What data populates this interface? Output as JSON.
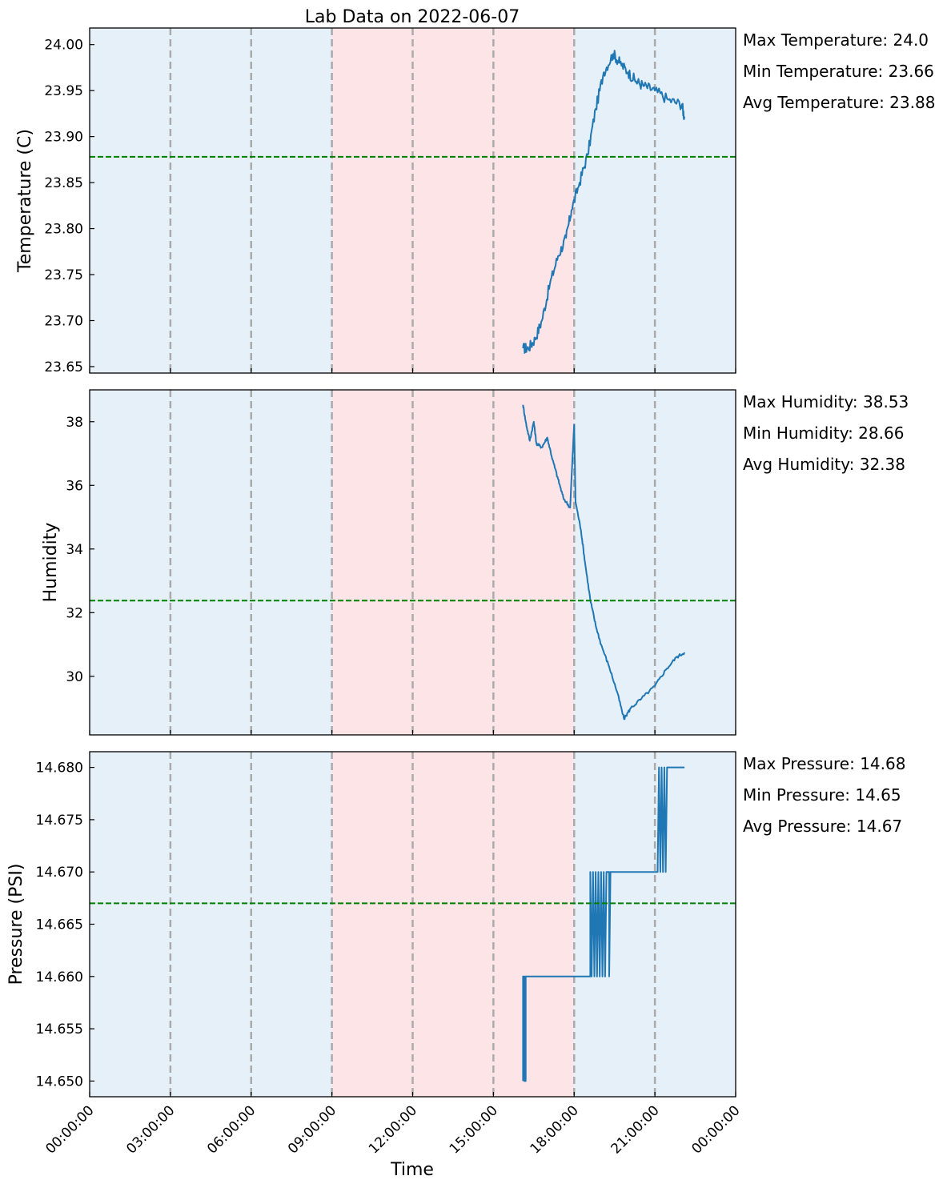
{
  "chart_data": {
    "type": "line",
    "title": "Lab Data on 2022-06-07",
    "xlabel": "Time",
    "x_range_hours": [
      0,
      24
    ],
    "x_tick_labels": [
      "00:00:00",
      "03:00:00",
      "06:00:00",
      "09:00:00",
      "12:00:00",
      "15:00:00",
      "18:00:00",
      "21:00:00",
      "00:00:00"
    ],
    "shaded_bands": [
      {
        "from_hour": 0,
        "to_hour": 9,
        "color": "#e6f0f9"
      },
      {
        "from_hour": 9,
        "to_hour": 18,
        "color": "#fde4e7"
      },
      {
        "from_hour": 18,
        "to_hour": 24,
        "color": "#e6f0f9"
      }
    ],
    "vertical_gridlines_hours": [
      3,
      6,
      9,
      12,
      15,
      18,
      21
    ],
    "colors": {
      "series": "#1f77b4",
      "average_line": "#008000",
      "gridline": "#aaaaaa"
    },
    "panels": [
      {
        "ylabel": "Temperature (C)",
        "ylim": [
          23.643,
          24.018
        ],
        "yticks": [
          23.65,
          23.7,
          23.75,
          23.8,
          23.85,
          23.9,
          23.95,
          24.0
        ],
        "ytick_labels": [
          "23.65",
          "23.70",
          "23.75",
          "23.80",
          "23.85",
          "23.90",
          "23.95",
          "24.00"
        ],
        "average": 23.878,
        "stats": [
          "Max Temperature: 24.0",
          "Min Temperature: 23.66",
          "Avg Temperature: 23.88"
        ],
        "noise": 0.012,
        "series": [
          {
            "x": 16.1,
            "y": 23.67
          },
          {
            "x": 16.3,
            "y": 23.67
          },
          {
            "x": 16.55,
            "y": 23.68
          },
          {
            "x": 16.8,
            "y": 23.7
          },
          {
            "x": 17.1,
            "y": 23.74
          },
          {
            "x": 17.4,
            "y": 23.77
          },
          {
            "x": 17.7,
            "y": 23.79
          },
          {
            "x": 17.9,
            "y": 23.82
          },
          {
            "x": 18.2,
            "y": 23.85
          },
          {
            "x": 18.5,
            "y": 23.88
          },
          {
            "x": 18.8,
            "y": 23.93
          },
          {
            "x": 19.1,
            "y": 23.97
          },
          {
            "x": 19.45,
            "y": 23.99
          },
          {
            "x": 19.7,
            "y": 23.98
          },
          {
            "x": 20.0,
            "y": 23.97
          },
          {
            "x": 20.3,
            "y": 23.96
          },
          {
            "x": 20.6,
            "y": 23.955
          },
          {
            "x": 21.0,
            "y": 23.95
          },
          {
            "x": 21.5,
            "y": 23.94
          },
          {
            "x": 22.0,
            "y": 23.935
          },
          {
            "x": 22.1,
            "y": 23.92
          }
        ]
      },
      {
        "ylabel": "Humidity",
        "ylim": [
          28.16,
          39.0
        ],
        "yticks": [
          30,
          32,
          34,
          36,
          38
        ],
        "ytick_labels": [
          "30",
          "32",
          "34",
          "36",
          "38"
        ],
        "average": 32.38,
        "stats": [
          "Max Humidity: 38.53",
          "Min Humidity: 28.66",
          "Avg Humidity: 32.38"
        ],
        "noise": 0.1,
        "series": [
          {
            "x": 16.1,
            "y": 38.53
          },
          {
            "x": 16.2,
            "y": 38.0
          },
          {
            "x": 16.35,
            "y": 37.4
          },
          {
            "x": 16.5,
            "y": 38.0
          },
          {
            "x": 16.6,
            "y": 37.3
          },
          {
            "x": 16.8,
            "y": 37.2
          },
          {
            "x": 17.0,
            "y": 37.5
          },
          {
            "x": 17.2,
            "y": 36.8
          },
          {
            "x": 17.4,
            "y": 36.2
          },
          {
            "x": 17.6,
            "y": 35.6
          },
          {
            "x": 17.85,
            "y": 35.3
          },
          {
            "x": 18.0,
            "y": 37.9
          },
          {
            "x": 18.05,
            "y": 35.5
          },
          {
            "x": 18.25,
            "y": 34.6
          },
          {
            "x": 18.4,
            "y": 33.6
          },
          {
            "x": 18.6,
            "y": 32.4
          },
          {
            "x": 18.8,
            "y": 31.6
          },
          {
            "x": 19.0,
            "y": 31.0
          },
          {
            "x": 19.3,
            "y": 30.3
          },
          {
            "x": 19.6,
            "y": 29.5
          },
          {
            "x": 19.85,
            "y": 28.66
          },
          {
            "x": 20.1,
            "y": 29.0
          },
          {
            "x": 20.5,
            "y": 29.3
          },
          {
            "x": 21.0,
            "y": 29.7
          },
          {
            "x": 21.4,
            "y": 30.2
          },
          {
            "x": 21.8,
            "y": 30.6
          },
          {
            "x": 22.1,
            "y": 30.75
          }
        ]
      },
      {
        "ylabel": "Pressure (PSI)",
        "ylim": [
          14.6485,
          14.6815
        ],
        "yticks": [
          14.65,
          14.655,
          14.66,
          14.665,
          14.67,
          14.675,
          14.68
        ],
        "ytick_labels": [
          "14.650",
          "14.655",
          "14.660",
          "14.665",
          "14.670",
          "14.675",
          "14.680"
        ],
        "average": 14.667,
        "stats": [
          "Max Pressure: 14.68",
          "Min Pressure: 14.65",
          "Avg Pressure: 14.67"
        ],
        "noise": 0,
        "series": [
          {
            "x": 16.1,
            "y": 14.65
          },
          {
            "x": 16.1,
            "y": 14.66
          },
          {
            "x": 16.15,
            "y": 14.66
          },
          {
            "x": 16.15,
            "y": 14.65
          },
          {
            "x": 16.2,
            "y": 14.65
          },
          {
            "x": 16.2,
            "y": 14.66
          },
          {
            "x": 18.6,
            "y": 14.66
          },
          {
            "x": 18.6,
            "y": 14.67
          },
          {
            "x": 18.65,
            "y": 14.66
          },
          {
            "x": 18.7,
            "y": 14.67
          },
          {
            "x": 18.75,
            "y": 14.66
          },
          {
            "x": 18.8,
            "y": 14.67
          },
          {
            "x": 18.85,
            "y": 14.66
          },
          {
            "x": 18.9,
            "y": 14.67
          },
          {
            "x": 18.95,
            "y": 14.66
          },
          {
            "x": 19.0,
            "y": 14.67
          },
          {
            "x": 19.05,
            "y": 14.66
          },
          {
            "x": 19.1,
            "y": 14.67
          },
          {
            "x": 19.15,
            "y": 14.66
          },
          {
            "x": 19.2,
            "y": 14.67
          },
          {
            "x": 19.3,
            "y": 14.67
          },
          {
            "x": 19.3,
            "y": 14.66
          },
          {
            "x": 19.35,
            "y": 14.67
          },
          {
            "x": 21.1,
            "y": 14.67
          },
          {
            "x": 21.15,
            "y": 14.68
          },
          {
            "x": 21.2,
            "y": 14.67
          },
          {
            "x": 21.25,
            "y": 14.68
          },
          {
            "x": 21.3,
            "y": 14.67
          },
          {
            "x": 21.35,
            "y": 14.68
          },
          {
            "x": 21.4,
            "y": 14.67
          },
          {
            "x": 21.45,
            "y": 14.68
          },
          {
            "x": 22.1,
            "y": 14.68
          }
        ]
      }
    ]
  }
}
